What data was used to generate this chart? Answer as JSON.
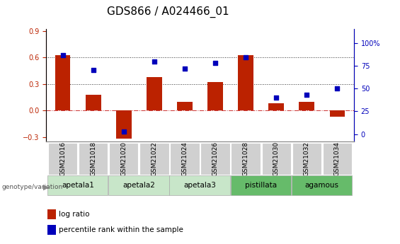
{
  "title": "GDS866 / A024466_01",
  "samples": [
    "GSM21016",
    "GSM21018",
    "GSM21020",
    "GSM21022",
    "GSM21024",
    "GSM21026",
    "GSM21028",
    "GSM21030",
    "GSM21032",
    "GSM21034"
  ],
  "log_ratio": [
    0.63,
    0.18,
    -0.32,
    0.38,
    0.1,
    0.32,
    0.63,
    0.08,
    0.1,
    -0.07
  ],
  "percentile_rank": [
    87,
    70,
    3,
    80,
    72,
    78,
    84,
    40,
    43,
    50
  ],
  "groups": [
    {
      "label": "apetala1",
      "color": "#c8e6c9",
      "start": 0,
      "end": 2
    },
    {
      "label": "apetala2",
      "color": "#c8e6c9",
      "start": 2,
      "end": 4
    },
    {
      "label": "apetala3",
      "color": "#c8e6c9",
      "start": 4,
      "end": 6
    },
    {
      "label": "pistillata",
      "color": "#66bb6a",
      "start": 6,
      "end": 8
    },
    {
      "label": "agamous",
      "color": "#66bb6a",
      "start": 8,
      "end": 10
    }
  ],
  "sample_box_color": "#d0d0d0",
  "bar_color": "#bb2200",
  "dot_color": "#0000bb",
  "ylim_left": [
    -0.35,
    0.92
  ],
  "ylim_right": [
    -8.05,
    115
  ],
  "yticks_left": [
    -0.3,
    0.0,
    0.3,
    0.6,
    0.9
  ],
  "yticks_right": [
    0,
    25,
    50,
    75,
    100
  ],
  "yticklabels_right": [
    "0",
    "25",
    "50",
    "75",
    "100%"
  ],
  "hlines": [
    0.0,
    0.3,
    0.6
  ],
  "hline_styles": [
    "dashdot",
    "dotted",
    "dotted"
  ],
  "hline_colors": [
    "#cc3333",
    "#333333",
    "#333333"
  ],
  "title_fontsize": 11,
  "tick_fontsize": 7,
  "bar_width": 0.5
}
